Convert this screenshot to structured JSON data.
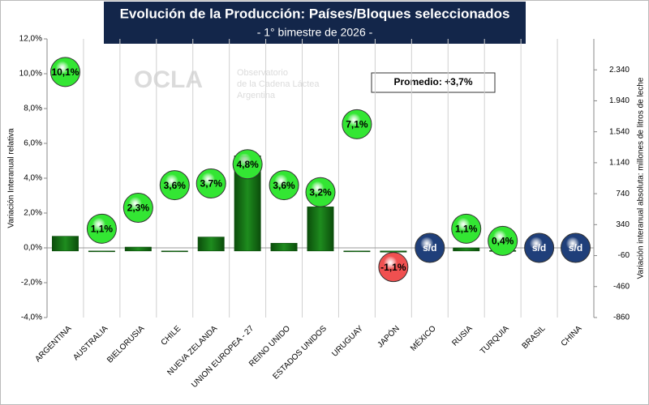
{
  "chart_data": {
    "type": "bar_bubble",
    "title": "Evolución de la Producción: Países/Bloques seleccionados",
    "subtitle": "- 1° bimestre de 2026 -",
    "annotation": "Promedio: +3,7%",
    "watermark": {
      "brand": "OCLA",
      "lines": [
        "Observatorio",
        "de la Cadena Láctea",
        "Argentina"
      ]
    },
    "ylabel": "Variación Interanual relativa",
    "y2label": "Variación interanual absoluta: millones de litros de leche",
    "categories": [
      "ARGENTINA",
      "AUSTRALIA",
      "BIELORUSIA",
      "CHILE",
      "NUEVA ZELANDA",
      "UNION EUROPEA - 27",
      "REINO UNIDO",
      "ESTADOS UNIDOS",
      "URUGUAY",
      "JAPÓN",
      "MÉXICO",
      "RUSIA",
      "TURQUIA",
      "BRASIL",
      "CHINA"
    ],
    "series": [
      {
        "type": "bar",
        "axis": "y2",
        "color": "#1e8c1e",
        "values": [
          190,
          -5,
          50,
          -10,
          180,
          1230,
          100,
          570,
          -10,
          -15,
          null,
          40,
          5,
          null,
          null
        ]
      },
      {
        "type": "bubble",
        "axis": "y",
        "color": "#33e633",
        "negative_color": "#f05050",
        "missing_color": "#1f3f7a",
        "values": [
          10.1,
          1.1,
          2.3,
          3.6,
          3.7,
          4.8,
          3.6,
          3.2,
          7.1,
          -1.1,
          null,
          1.1,
          0.4,
          null,
          null
        ],
        "value_labels": [
          "10,1%",
          "1,1%",
          "2,3%",
          "3,6%",
          "3,7%",
          "4,8%",
          "3,6%",
          "3,2%",
          "7,1%",
          "-1,1%",
          "s/d",
          "1,1%",
          "0,4%",
          "s/d",
          "s/d"
        ]
      }
    ],
    "ylim": [
      -4,
      12
    ],
    "yticks": [
      {
        "value": -4,
        "label": "-4,0%"
      },
      {
        "value": -2,
        "label": "-2,0%"
      },
      {
        "value": 0,
        "label": "0,0%"
      },
      {
        "value": 2,
        "label": "2,0%"
      },
      {
        "value": 4,
        "label": "4,0%"
      },
      {
        "value": 6,
        "label": "6,0%"
      },
      {
        "value": 8,
        "label": "8,0%"
      },
      {
        "value": 10,
        "label": "10,0%"
      },
      {
        "value": 12,
        "label": "12,0%"
      }
    ],
    "y2lim": [
      -860,
      2740
    ],
    "y2ticks": [
      -860,
      -460,
      -60,
      340,
      740,
      {
        "value": 1140,
        "label": "1.140"
      },
      {
        "value": 1540,
        "label": "1.540"
      },
      {
        "value": 1940,
        "label": "1.940"
      },
      {
        "value": 2340,
        "label": "2.340"
      }
    ]
  }
}
